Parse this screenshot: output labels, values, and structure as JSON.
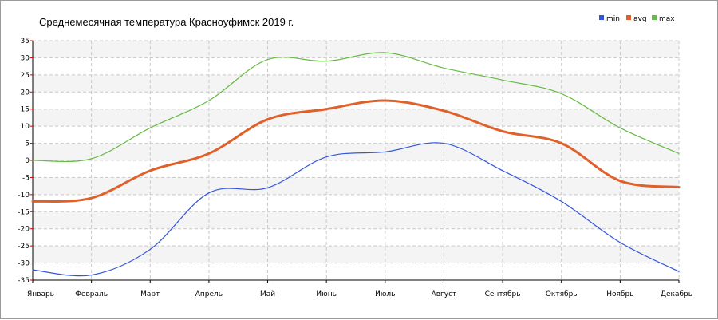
{
  "chart_data": {
    "type": "line",
    "title": "Среднемесячная температура Красноуфимск  2019 г.",
    "categories": [
      "Январь",
      "Февраль",
      "Март",
      "Апрель",
      "Май",
      "Июнь",
      "Июль",
      "Август",
      "Сентябрь",
      "Октябрь",
      "Ноябрь",
      "Декабрь"
    ],
    "ylim": [
      -35,
      35
    ],
    "yticks": [
      35,
      30,
      25,
      20,
      15,
      10,
      5,
      0,
      -5,
      -10,
      -15,
      -20,
      -25,
      -30,
      -35
    ],
    "grid": true,
    "legend_position": "top-right",
    "series": [
      {
        "name": "min",
        "color": "#3355dd",
        "values": [
          -32,
          -33.5,
          -26,
          -9.5,
          -8,
          1,
          2.5,
          5,
          -3,
          -12,
          -24,
          -32.5
        ]
      },
      {
        "name": "avg",
        "color": "#e0602a",
        "values": [
          -12,
          -11,
          -3,
          2,
          12,
          15,
          17.5,
          14.5,
          8.5,
          5,
          -6,
          -7.8
        ]
      },
      {
        "name": "max",
        "color": "#66bb44",
        "values": [
          0,
          0.5,
          9.5,
          17.5,
          29.5,
          29,
          31.5,
          27,
          23.5,
          19.5,
          9.5,
          2
        ]
      }
    ]
  }
}
